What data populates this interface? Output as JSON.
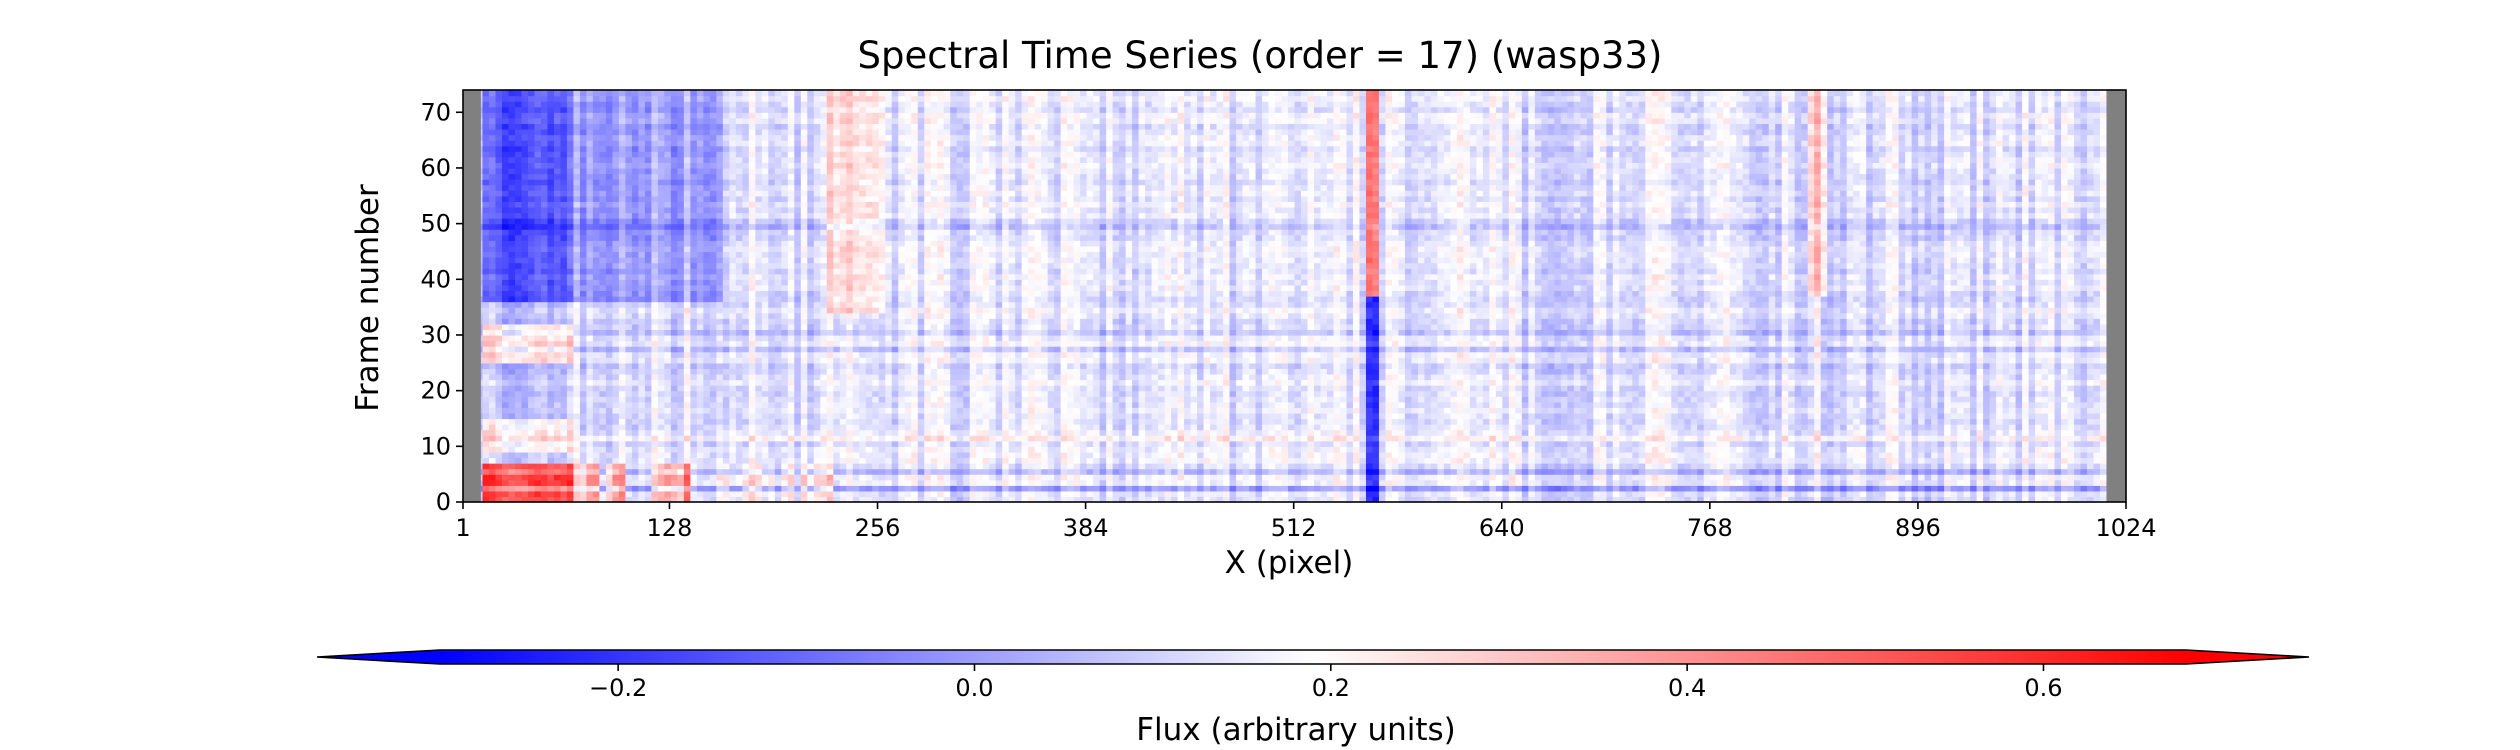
{
  "chart_data": {
    "type": "heatmap",
    "title": "Spectral Time Series (order = 17) (wasp33)",
    "xlabel": "X (pixel)",
    "ylabel": "Frame number",
    "xlim": [
      1,
      1024
    ],
    "ylim": [
      0,
      74
    ],
    "x_ticks": [
      1,
      128,
      256,
      384,
      512,
      640,
      768,
      896,
      1024
    ],
    "y_ticks": [
      0,
      10,
      20,
      30,
      40,
      50,
      60,
      70
    ],
    "masked_x_ranges": [
      [
        1,
        12
      ],
      [
        1012,
        1024
      ]
    ],
    "masked_color": "#808080",
    "grid": false,
    "colorbar": {
      "label": "Flux (arbitrary units)",
      "orientation": "horizontal",
      "position": "bottom",
      "range": [
        -0.3,
        0.68
      ],
      "ticks": [
        -0.2,
        0.0,
        0.2,
        0.4,
        0.6
      ],
      "tick_labels": [
        "−0.2",
        "0.0",
        "0.2",
        "0.4",
        "0.6"
      ],
      "extend": "both",
      "colormap": "bwr",
      "colors": {
        "low": "#0000ff",
        "mid": "#ffffff",
        "high": "#ff0000"
      }
    }
  }
}
